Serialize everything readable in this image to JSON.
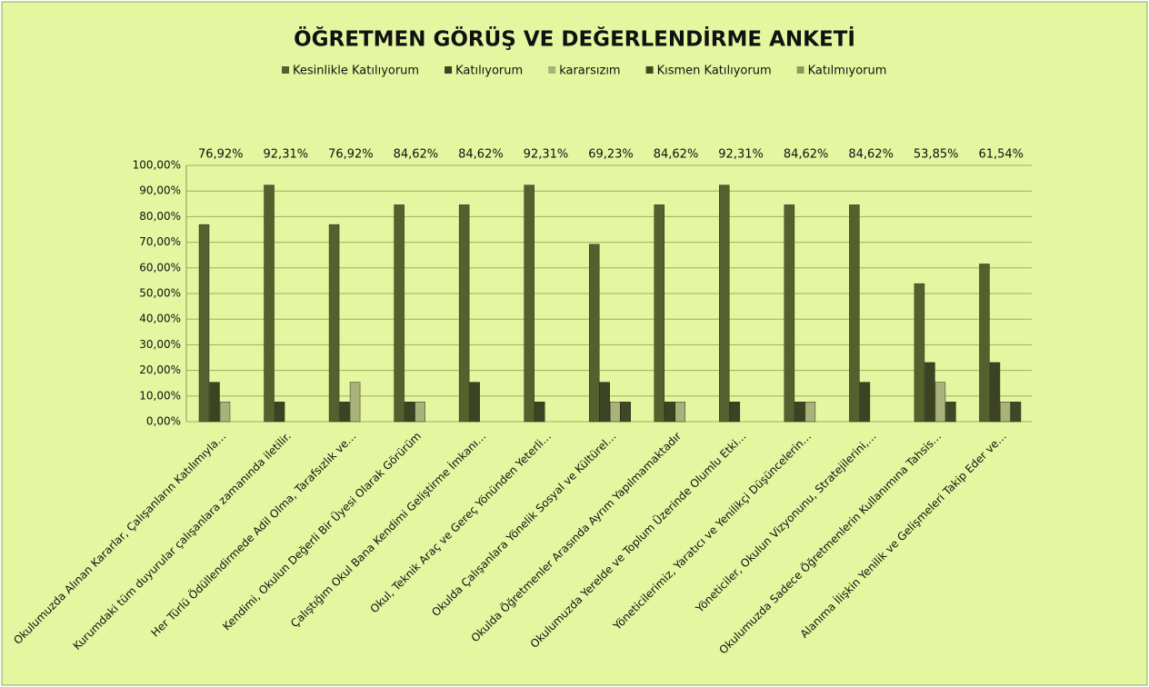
{
  "chart_data": {
    "type": "bar",
    "title": "ÖĞRETMEN GÖRÜŞ VE DEĞERLENDİRME ANKETİ",
    "categories": [
      "Okulumuzda Alınan Kararlar, Çalışanların Katılımıyla…",
      "Kurumdaki tüm duyurular çalışanlara zamanında iletilir.",
      "Her Türlü Ödüllendirmede Adil Olma, Tarafsızlık ve…",
      "Kendimi, Okulun Değerli Bir Üyesi Olarak Görürüm",
      "Çalıştığım Okul Bana Kendimi Geliştirme İmkanı…",
      "Okul, Teknik Araç ve Gereç Yönünden Yeterli…",
      "Okulda Çalışanlara Yönelik Sosyal ve Kültürel…",
      "Okulda Öğretmenler Arasında Ayrım Yapılmamaktadır",
      "Okulumuzda Yerelde ve Toplum Üzerinde Olumlu Etki…",
      "Yöneticilerimiz, Yaratıcı ve Yenilikçi Düşüncelerin…",
      "Yöneticiler, Okulun Vizyonunu, Stratejilerini,…",
      "Okulumuzda Sadece Öğretmenlerin Kullanımına Tahsis…",
      "Alanıma İlişkin Yenilik ve Gelişmeleri Takip Eder ve…"
    ],
    "series": [
      {
        "name": "Kesinlikle Katılıyorum",
        "color": "#56602f",
        "values": [
          76.92,
          92.31,
          76.92,
          84.62,
          84.62,
          92.31,
          69.23,
          84.62,
          92.31,
          84.62,
          84.62,
          53.85,
          61.54
        ],
        "value_labels": [
          "76,92%",
          "92,31%",
          "76,92%",
          "84,62%",
          "84,62%",
          "92,31%",
          "69,23%",
          "84,62%",
          "92,31%",
          "84,62%",
          "84,62%",
          "53,85%",
          "61,54%"
        ]
      },
      {
        "name": "Katılıyorum",
        "color": "#3b4322",
        "values": [
          15.38,
          7.69,
          7.69,
          7.69,
          15.38,
          7.69,
          15.38,
          7.69,
          7.69,
          7.69,
          15.38,
          23.08,
          23.08
        ]
      },
      {
        "name": "kararsızım",
        "color": "#a8b27a",
        "values": [
          7.69,
          0,
          15.38,
          7.69,
          0,
          0,
          7.69,
          7.69,
          0,
          7.69,
          0,
          15.38,
          7.69
        ]
      },
      {
        "name": "Kısmen Katılıyorum",
        "color": "#3f4826",
        "values": [
          0,
          0,
          0,
          0,
          0,
          0,
          7.69,
          0,
          0,
          0,
          0,
          7.69,
          7.69
        ]
      },
      {
        "name": "Katılmıyorum",
        "color": "#8e9a5c",
        "values": [
          0,
          0,
          0,
          0,
          0,
          0,
          0,
          0,
          0,
          0,
          0,
          0,
          0
        ]
      }
    ],
    "ylim": [
      0,
      100
    ],
    "yticks": [
      {
        "value": 0,
        "label": "0,00%"
      },
      {
        "value": 10,
        "label": "10,00%"
      },
      {
        "value": 20,
        "label": "20,00%"
      },
      {
        "value": 30,
        "label": "30,00%"
      },
      {
        "value": 40,
        "label": "40,00%"
      },
      {
        "value": 50,
        "label": "50,00%"
      },
      {
        "value": 60,
        "label": "60,00%"
      },
      {
        "value": 70,
        "label": "70,00%"
      },
      {
        "value": 80,
        "label": "80,00%"
      },
      {
        "value": 90,
        "label": "90,00%"
      },
      {
        "value": 100,
        "label": "100,00%"
      }
    ],
    "grid": true,
    "legend": "top"
  }
}
